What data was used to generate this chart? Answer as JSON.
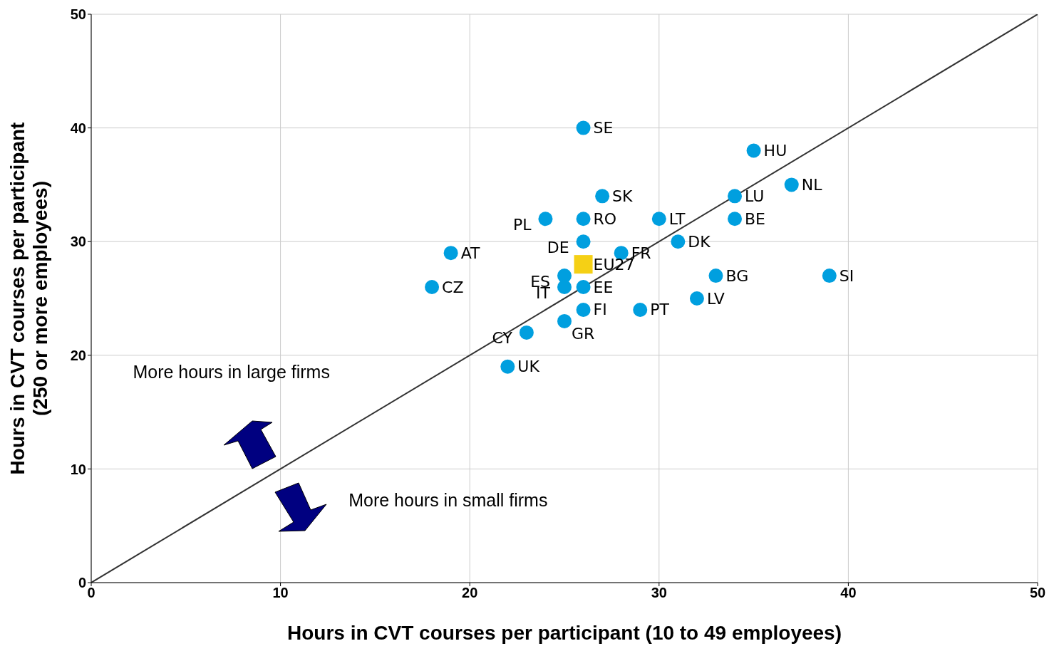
{
  "chart_data": {
    "type": "scatter",
    "xlabel": "Hours in CVT courses per participant (10 to 49 employees)",
    "ylabel": "Hours in CVT courses per participant\n(250 or more employees)",
    "xlim": [
      0,
      50
    ],
    "ylim": [
      0,
      50
    ],
    "xticks": [
      0,
      10,
      20,
      30,
      40,
      50
    ],
    "yticks": [
      0,
      10,
      20,
      30,
      40,
      50
    ],
    "grid": true,
    "legend": false,
    "marker": "circle",
    "annotations": [
      "More hours in large firms",
      "More hours in small firms"
    ],
    "series": [
      {
        "name": "SE",
        "color": "#009fdf",
        "x": [
          26
        ],
        "values": [
          40
        ]
      },
      {
        "name": "HU",
        "color": "#009fdf",
        "x": [
          35
        ],
        "values": [
          38
        ]
      },
      {
        "name": "NL",
        "color": "#009fdf",
        "x": [
          37
        ],
        "values": [
          35
        ]
      },
      {
        "name": "SK",
        "color": "#009fdf",
        "x": [
          27
        ],
        "values": [
          34
        ]
      },
      {
        "name": "LU",
        "color": "#009fdf",
        "x": [
          34
        ],
        "values": [
          34
        ]
      },
      {
        "name": "PL",
        "color": "#009fdf",
        "x": [
          24
        ],
        "values": [
          32
        ]
      },
      {
        "name": "RO",
        "color": "#009fdf",
        "x": [
          26
        ],
        "values": [
          32
        ]
      },
      {
        "name": "LT",
        "color": "#009fdf",
        "x": [
          30
        ],
        "values": [
          32
        ]
      },
      {
        "name": "BE",
        "color": "#009fdf",
        "x": [
          34
        ],
        "values": [
          32
        ]
      },
      {
        "name": "DE",
        "color": "#009fdf",
        "x": [
          26
        ],
        "values": [
          30
        ]
      },
      {
        "name": "DK",
        "color": "#009fdf",
        "x": [
          31
        ],
        "values": [
          30
        ]
      },
      {
        "name": "AT",
        "color": "#009fdf",
        "x": [
          19
        ],
        "values": [
          29
        ]
      },
      {
        "name": "FR",
        "color": "#009fdf",
        "x": [
          28
        ],
        "values": [
          29
        ]
      },
      {
        "name": "EU27",
        "color": "#f5d015",
        "x": [
          26
        ],
        "values": [
          28
        ],
        "marker": "square"
      },
      {
        "name": "ES",
        "color": "#009fdf",
        "x": [
          25
        ],
        "values": [
          27
        ]
      },
      {
        "name": "BG",
        "color": "#009fdf",
        "x": [
          33
        ],
        "values": [
          27
        ]
      },
      {
        "name": "SI",
        "color": "#009fdf",
        "x": [
          39
        ],
        "values": [
          27
        ]
      },
      {
        "name": "CZ",
        "color": "#009fdf",
        "x": [
          18
        ],
        "values": [
          26
        ]
      },
      {
        "name": "IT",
        "color": "#009fdf",
        "x": [
          25
        ],
        "values": [
          26
        ]
      },
      {
        "name": "EE",
        "color": "#009fdf",
        "x": [
          26
        ],
        "values": [
          26
        ]
      },
      {
        "name": "LV",
        "color": "#009fdf",
        "x": [
          32
        ],
        "values": [
          25
        ]
      },
      {
        "name": "FI",
        "color": "#009fdf",
        "x": [
          26
        ],
        "values": [
          24
        ]
      },
      {
        "name": "PT",
        "color": "#009fdf",
        "x": [
          29
        ],
        "values": [
          24
        ]
      },
      {
        "name": "GR",
        "color": "#009fdf",
        "x": [
          25
        ],
        "values": [
          23
        ]
      },
      {
        "name": "CY",
        "color": "#009fdf",
        "x": [
          23
        ],
        "values": [
          22
        ]
      },
      {
        "name": "UK",
        "color": "#009fdf",
        "x": [
          22
        ],
        "values": [
          19
        ]
      },
      {
        "type": "line",
        "color": "#333333",
        "x": [
          0,
          50
        ],
        "values": [
          0,
          50
        ],
        "marker": "none"
      }
    ]
  }
}
